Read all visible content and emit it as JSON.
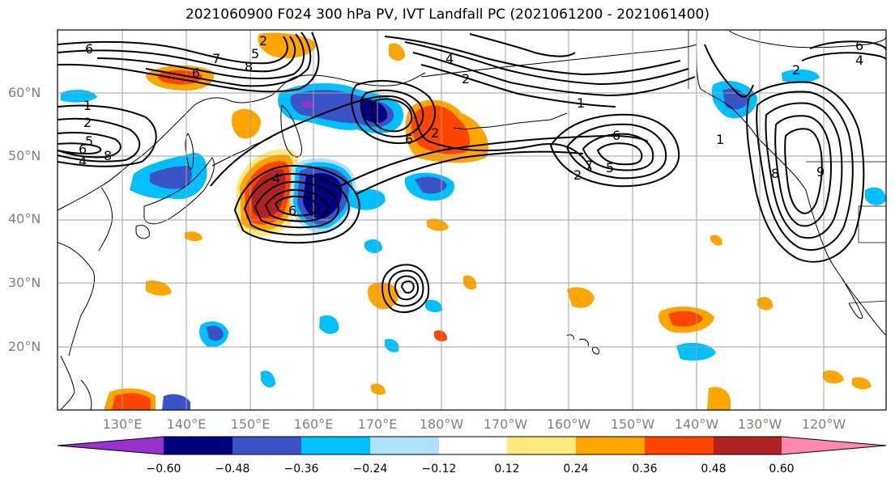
{
  "title": "2021060900 F024 300 hPa PV, IVT Landfall PC (2021061200 - 2021061400)",
  "lat_labels": [
    "60°N",
    "50°N",
    "40°N",
    "30°N",
    "20°N"
  ],
  "lon_labels": [
    "130°E",
    "140°E",
    "150°E",
    "160°E",
    "170°E",
    "180°W",
    "170°W",
    "160°W",
    "150°W",
    "140°W",
    "130°W",
    "120°W"
  ],
  "contour_labels": [
    "1",
    "2",
    "4",
    "5",
    "6",
    "8",
    "2",
    "5",
    "6",
    "7",
    "8",
    "6",
    "2",
    "4",
    "1",
    "2",
    "6",
    "7",
    "5",
    "6",
    "2",
    "4",
    "6",
    "1",
    "8",
    "6",
    "4",
    "2",
    "9"
  ],
  "colorbar": {
    "ticks": [
      "−0.60",
      "−0.48",
      "−0.36",
      "−0.24",
      "−0.12",
      "0.12",
      "0.24",
      "0.36",
      "0.48",
      "0.60"
    ],
    "colors": [
      "#9932cc",
      "#000080",
      "#3a54c8",
      "#00bfff",
      "#b0e0ff",
      "#ffffff",
      "#ffe87c",
      "#ffa500",
      "#ff4500",
      "#b22222",
      "#ff88b0"
    ]
  }
}
